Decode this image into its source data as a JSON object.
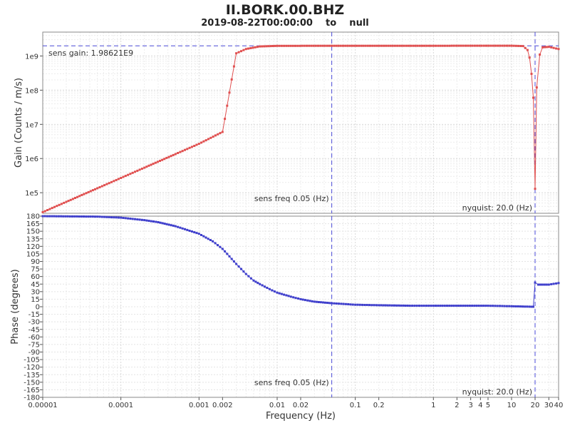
{
  "title": "II.BORK.00.BHZ",
  "subtitle": "2019-08-22T00:00:00    to    null",
  "chart_data": [
    {
      "type": "line",
      "panel": "gain",
      "ylabel": "Gain (Counts / m/s)",
      "yscale": "log",
      "ylim": [
        25000,
        5000000000
      ],
      "yticks": [
        {
          "v": 100000,
          "label": "1e5"
        },
        {
          "v": 1000000,
          "label": "1e6"
        },
        {
          "v": 10000000,
          "label": "1e7"
        },
        {
          "v": 100000000,
          "label": "1e8"
        },
        {
          "v": 1000000000,
          "label": "1e9"
        }
      ],
      "color": "#e05050",
      "sens_gain_value": 1986210000,
      "sens_gain_label": "sens gain: 1.98621E9",
      "sens_freq_label": "sens freq 0.05 (Hz)",
      "nyquist_label": "nyquist: 20.0 (Hz)",
      "points": [
        [
          1e-05,
          27000
        ],
        [
          2e-05,
          54000
        ],
        [
          5e-05,
          135000
        ],
        [
          0.0001,
          270000
        ],
        [
          0.0002,
          540000
        ],
        [
          0.0005,
          1350000
        ],
        [
          0.001,
          2700000
        ],
        [
          0.002,
          6000000
        ],
        [
          0.003,
          1200000000
        ],
        [
          0.004,
          1600000000
        ],
        [
          0.006,
          1900000000
        ],
        [
          0.01,
          1980000000
        ],
        [
          0.05,
          1986000000
        ],
        [
          1,
          1990000000
        ],
        [
          10,
          2000000000
        ],
        [
          14,
          1950000000
        ],
        [
          16,
          1500000000
        ],
        [
          17,
          900000000
        ],
        [
          18,
          300000000
        ],
        [
          19,
          60000000
        ],
        [
          20,
          130000
        ],
        [
          21,
          120000000
        ],
        [
          23,
          1100000000
        ],
        [
          25,
          1800000000
        ],
        [
          30,
          1850000000
        ],
        [
          40,
          1600000000
        ]
      ]
    },
    {
      "type": "line",
      "panel": "phase",
      "ylabel": "Phase (degrees)",
      "ylim": [
        -180,
        180
      ],
      "yticks": [
        180,
        165,
        150,
        135,
        120,
        105,
        90,
        75,
        60,
        45,
        30,
        15,
        0,
        -15,
        -30,
        -45,
        -60,
        -75,
        -90,
        -105,
        -120,
        -135,
        -150,
        -165,
        -180
      ],
      "color": "#4040cc",
      "sens_freq_label": "sens freq 0.05 (Hz)",
      "nyquist_label": "nyquist: 20.0 (Hz)",
      "points": [
        [
          1e-05,
          180
        ],
        [
          5e-05,
          179
        ],
        [
          0.0001,
          177
        ],
        [
          0.0002,
          172
        ],
        [
          0.0003,
          168
        ],
        [
          0.0005,
          160
        ],
        [
          0.001,
          145
        ],
        [
          0.0015,
          130
        ],
        [
          0.002,
          115
        ],
        [
          0.003,
          85
        ],
        [
          0.004,
          65
        ],
        [
          0.005,
          52
        ],
        [
          0.006,
          45
        ],
        [
          0.008,
          35
        ],
        [
          0.01,
          28
        ],
        [
          0.015,
          20
        ],
        [
          0.02,
          15
        ],
        [
          0.03,
          10
        ],
        [
          0.05,
          7
        ],
        [
          0.1,
          4
        ],
        [
          0.2,
          3
        ],
        [
          0.5,
          2
        ],
        [
          1,
          2
        ],
        [
          5,
          2
        ],
        [
          10,
          1
        ],
        [
          18,
          0
        ],
        [
          19,
          0
        ],
        [
          20,
          48
        ],
        [
          22,
          44
        ],
        [
          30,
          44
        ],
        [
          40,
          47
        ]
      ]
    }
  ],
  "xaxis": {
    "label": "Frequency (Hz)",
    "scale": "log",
    "xlim": [
      1e-05,
      40
    ],
    "ticks": [
      {
        "v": 1e-05,
        "label": "0.00001"
      },
      {
        "v": 0.0001,
        "label": "0.0001"
      },
      {
        "v": 0.001,
        "label": "0.001"
      },
      {
        "v": 0.002,
        "label": "0.002"
      },
      {
        "v": 0.01,
        "label": "0.01"
      },
      {
        "v": 0.02,
        "label": "0.02"
      },
      {
        "v": 0.1,
        "label": "0.1"
      },
      {
        "v": 0.2,
        "label": "0.2"
      },
      {
        "v": 1,
        "label": "1"
      },
      {
        "v": 2,
        "label": "2"
      },
      {
        "v": 3,
        "label": "3"
      },
      {
        "v": 4,
        "label": "4"
      },
      {
        "v": 5,
        "label": "5"
      },
      {
        "v": 10,
        "label": "10"
      },
      {
        "v": 20,
        "label": "20"
      },
      {
        "v": 30,
        "label": "30"
      },
      {
        "v": 40,
        "label": "40"
      }
    ],
    "sens_freq": 0.05,
    "nyquist": 20
  }
}
